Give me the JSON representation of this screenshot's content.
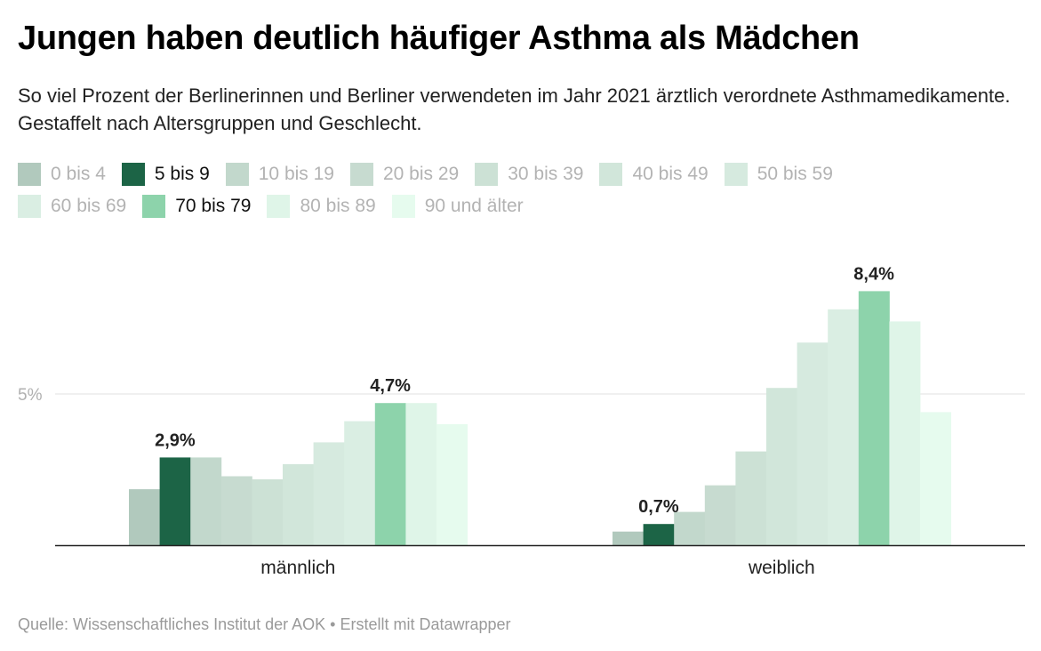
{
  "title": "Jungen haben deutlich häufiger Asthma als Mädchen",
  "subtitle": "So viel Prozent der Berlinerinnen und Berliner verwendeten im Jahr 2021 ärztlich verordnete Asthmamedikamente. Gestaffelt nach Altersgruppen und Geschlecht.",
  "source": "Quelle: Wissenschaftliches Institut der AOK • Erstellt mit Datawrapper",
  "chart_data": {
    "type": "bar",
    "title": "Jungen haben deutlich häufiger Asthma als Mädchen",
    "xlabel": "",
    "ylabel": "",
    "categories": [
      "männlich",
      "weiblich"
    ],
    "ylim": [
      0,
      9
    ],
    "yticks": [
      {
        "value": 5,
        "label": "5%"
      }
    ],
    "grid": true,
    "legend_position": "top",
    "series": [
      {
        "name": "0 bis 4",
        "color": "#b1c9bd",
        "highlight": false,
        "values": [
          1.85,
          0.45
        ]
      },
      {
        "name": "5 bis 9",
        "color": "#1c6446",
        "highlight": true,
        "values": [
          2.9,
          0.7
        ]
      },
      {
        "name": "10 bis 19",
        "color": "#c2d8cc",
        "highlight": false,
        "values": [
          2.9,
          1.1
        ]
      },
      {
        "name": "20 bis 29",
        "color": "#c7dbd0",
        "highlight": false,
        "values": [
          2.28,
          1.98
        ]
      },
      {
        "name": "30 bis 39",
        "color": "#cce1d5",
        "highlight": false,
        "values": [
          2.18,
          3.1
        ]
      },
      {
        "name": "40 bis 49",
        "color": "#d1e6da",
        "highlight": false,
        "values": [
          2.68,
          5.2
        ]
      },
      {
        "name": "50 bis 59",
        "color": "#d6eadf",
        "highlight": false,
        "values": [
          3.4,
          6.7
        ]
      },
      {
        "name": "60 bis 69",
        "color": "#daeee3",
        "highlight": false,
        "values": [
          4.1,
          7.8
        ]
      },
      {
        "name": "70 bis 79",
        "color": "#8dd3ab",
        "highlight": true,
        "values": [
          4.7,
          8.4
        ]
      },
      {
        "name": "80 bis 89",
        "color": "#dff5e8",
        "highlight": false,
        "values": [
          4.7,
          7.4
        ]
      },
      {
        "name": "90 und älter",
        "color": "#e6fbee",
        "highlight": false,
        "values": [
          4.0,
          4.4
        ]
      }
    ],
    "data_labels": [
      {
        "series": "5 bis 9",
        "category": "männlich",
        "text": "2,9%"
      },
      {
        "series": "70 bis 79",
        "category": "männlich",
        "text": "4,7%"
      },
      {
        "series": "5 bis 9",
        "category": "weiblich",
        "text": "0,7%"
      },
      {
        "series": "70 bis 79",
        "category": "weiblich",
        "text": "8,4%"
      }
    ]
  }
}
